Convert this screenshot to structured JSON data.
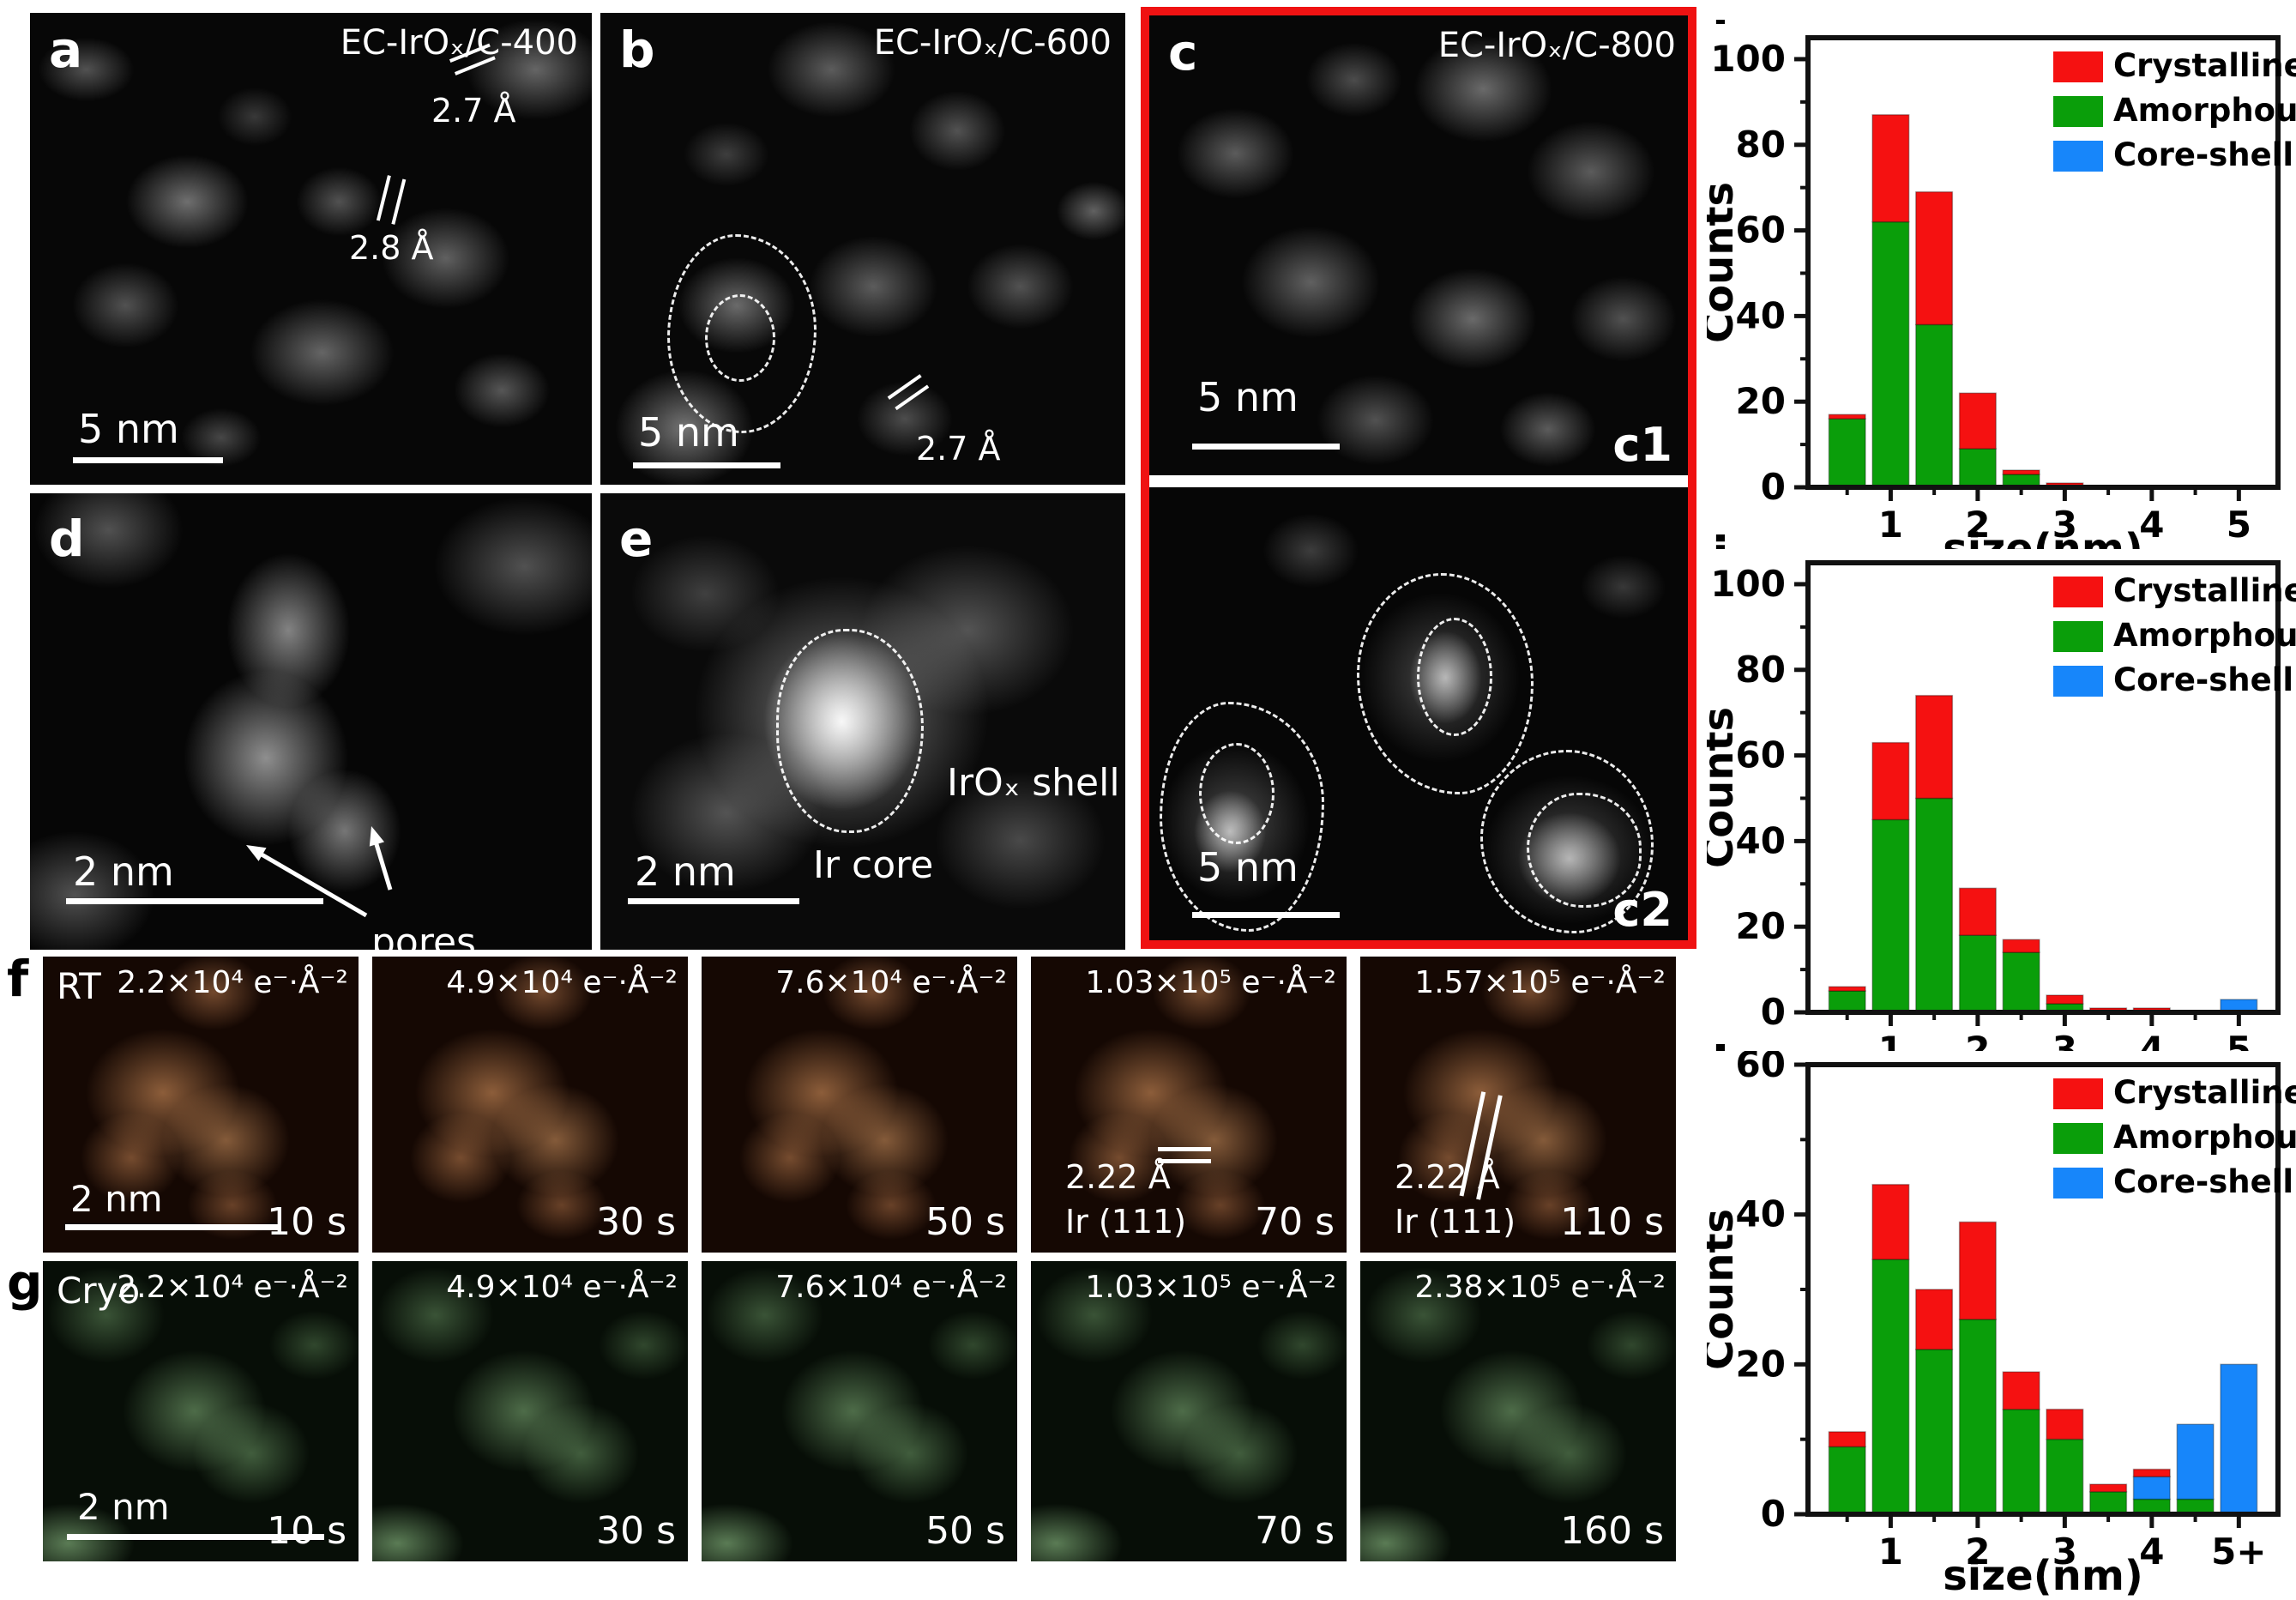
{
  "figure": {
    "panels": {
      "a": {
        "label": "a",
        "title": "EC-IrOₓ/C-400",
        "ann1": "2.7 Å",
        "ann2": "2.8 Å",
        "scalebar": "5 nm"
      },
      "b": {
        "label": "b",
        "title": "EC-IrOₓ/C-600",
        "ann1": "2.7 Å",
        "scalebar": "5 nm"
      },
      "c": {
        "label": "c",
        "title": "EC-IrOₓ/C-800",
        "c1_label": "c1",
        "c2_label": "c2",
        "scalebar_c1": "5 nm",
        "scalebar_c2": "5 nm"
      },
      "d": {
        "label": "d",
        "pores_label": "pores",
        "scalebar": "2 nm"
      },
      "e": {
        "label": "e",
        "shell_label": "IrOₓ shell",
        "core_label": "Ir core",
        "scalebar": "2 nm"
      },
      "f": {
        "label": "f",
        "mode": "RT",
        "scalebar": "2 nm",
        "frames": [
          {
            "dose": "2.2×10⁴ e⁻·Å⁻²",
            "time": "10 s"
          },
          {
            "dose": "4.9×10⁴ e⁻·Å⁻²",
            "time": "30 s"
          },
          {
            "dose": "7.6×10⁴ e⁻·Å⁻²",
            "time": "50 s"
          },
          {
            "dose": "1.03×10⁵ e⁻·Å⁻²",
            "time": "70 s",
            "spacing": "2.22 Å",
            "plane": "Ir (111)"
          },
          {
            "dose": "1.57×10⁵ e⁻·Å⁻²",
            "time": "110 s",
            "spacing": "2.22 Å",
            "plane": "Ir (111)"
          }
        ]
      },
      "g": {
        "label": "g",
        "mode": "Cryo",
        "scalebar": "2 nm",
        "frames": [
          {
            "dose": "2.2×10⁴ e⁻·Å⁻²",
            "time": "10 s"
          },
          {
            "dose": "4.9×10⁴ e⁻·Å⁻²",
            "time": "30 s"
          },
          {
            "dose": "7.6×10⁴ e⁻·Å⁻²",
            "time": "50 s"
          },
          {
            "dose": "1.03×10⁵ e⁻·Å⁻²",
            "time": "70 s"
          },
          {
            "dose": "2.38×10⁵ e⁻·Å⁻²",
            "time": "160 s"
          }
        ]
      },
      "h": {
        "label": "h"
      },
      "i": {
        "label": "i"
      },
      "j": {
        "label": "j"
      }
    },
    "colors": {
      "crystalline": "#f51111",
      "amorphous": "#0a9e0a",
      "coreshell": "#1786fa",
      "frame_border": "#ef1212"
    }
  },
  "chart_data": [
    {
      "panel": "h",
      "type": "bar",
      "stacked": true,
      "title": "",
      "xlabel": "size(nm)",
      "ylabel": "Counts",
      "xlim": [
        0.05,
        5.45
      ],
      "ylim": [
        0,
        105
      ],
      "grid": false,
      "legend_position": "top-right",
      "yticks": [
        0,
        20,
        40,
        60,
        80,
        100
      ],
      "y_minor_step": 10,
      "xticks": [
        1,
        2,
        3,
        4,
        5
      ],
      "xtick_labels": [
        "1",
        "2",
        "3",
        "4",
        "5"
      ],
      "x_minor_step": 0.5,
      "categories": [
        0.5,
        1,
        1.5,
        2,
        2.5,
        3,
        3.5,
        4,
        4.5,
        5
      ],
      "bar_width": 0.42,
      "series": [
        {
          "name": "Amorphous",
          "color": "#0a9e0a",
          "values": [
            16,
            62,
            38,
            9,
            3,
            0,
            0,
            0,
            0,
            0
          ]
        },
        {
          "name": "Core-shell",
          "color": "#1786fa",
          "values": [
            0,
            0,
            0,
            0,
            0,
            0,
            0,
            0,
            0,
            0
          ]
        },
        {
          "name": "Crystalline",
          "color": "#f51111",
          "values": [
            1,
            25,
            31,
            13,
            1,
            1,
            0,
            0,
            0,
            0
          ]
        }
      ],
      "legend": [
        {
          "label": "Crystalline",
          "color": "#f51111"
        },
        {
          "label": "Amorphous",
          "color": "#0a9e0a"
        },
        {
          "label": "Core-shell",
          "color": "#1786fa"
        }
      ]
    },
    {
      "panel": "i",
      "type": "bar",
      "stacked": true,
      "title": "",
      "xlabel": "size(nm)",
      "ylabel": "Counts",
      "xlim": [
        0.05,
        5.45
      ],
      "ylim": [
        0,
        105
      ],
      "grid": false,
      "legend_position": "top-right",
      "yticks": [
        0,
        20,
        40,
        60,
        80,
        100
      ],
      "y_minor_step": 10,
      "xticks": [
        1,
        2,
        3,
        4,
        5
      ],
      "xtick_labels": [
        "1",
        "2",
        "3",
        "4",
        "5"
      ],
      "x_minor_step": 0.5,
      "categories": [
        0.5,
        1,
        1.5,
        2,
        2.5,
        3,
        3.5,
        4,
        4.5,
        5
      ],
      "bar_width": 0.42,
      "series": [
        {
          "name": "Amorphous",
          "color": "#0a9e0a",
          "values": [
            5,
            45,
            50,
            18,
            14,
            2,
            0,
            0,
            0,
            0
          ]
        },
        {
          "name": "Core-shell",
          "color": "#1786fa",
          "values": [
            0,
            0,
            0,
            0,
            0,
            0,
            0,
            0,
            0,
            3
          ]
        },
        {
          "name": "Crystalline",
          "color": "#f51111",
          "values": [
            1,
            18,
            24,
            11,
            3,
            2,
            1,
            1,
            0,
            0
          ]
        }
      ],
      "legend": [
        {
          "label": "Crystalline",
          "color": "#f51111"
        },
        {
          "label": "Amorphous",
          "color": "#0a9e0a"
        },
        {
          "label": "Core-shell",
          "color": "#1786fa"
        }
      ]
    },
    {
      "panel": "j",
      "type": "bar",
      "stacked": true,
      "title": "",
      "xlabel": "size(nm)",
      "ylabel": "Counts",
      "xlim": [
        0.05,
        5.45
      ],
      "ylim": [
        0,
        60
      ],
      "grid": false,
      "legend_position": "top-right",
      "yticks": [
        0,
        20,
        40,
        60
      ],
      "y_minor_step": 10,
      "xticks": [
        1,
        2,
        3,
        4,
        5
      ],
      "xtick_labels": [
        "1",
        "2",
        "3",
        "4",
        "5+"
      ],
      "x_minor_step": 0.5,
      "categories": [
        0.5,
        1,
        1.5,
        2,
        2.5,
        3,
        3.5,
        4,
        4.5,
        5
      ],
      "bar_width": 0.42,
      "series": [
        {
          "name": "Amorphous",
          "color": "#0a9e0a",
          "values": [
            9,
            34,
            22,
            26,
            14,
            10,
            3,
            2,
            2,
            0
          ]
        },
        {
          "name": "Core-shell",
          "color": "#1786fa",
          "values": [
            0,
            0,
            0,
            0,
            0,
            0,
            0,
            3,
            10,
            20
          ]
        },
        {
          "name": "Crystalline",
          "color": "#f51111",
          "values": [
            2,
            10,
            8,
            13,
            5,
            4,
            1,
            1,
            0,
            0
          ]
        }
      ],
      "legend": [
        {
          "label": "Crystalline",
          "color": "#f51111"
        },
        {
          "label": "Amorphous",
          "color": "#0a9e0a"
        },
        {
          "label": "Core-shell",
          "color": "#1786fa"
        }
      ]
    }
  ]
}
